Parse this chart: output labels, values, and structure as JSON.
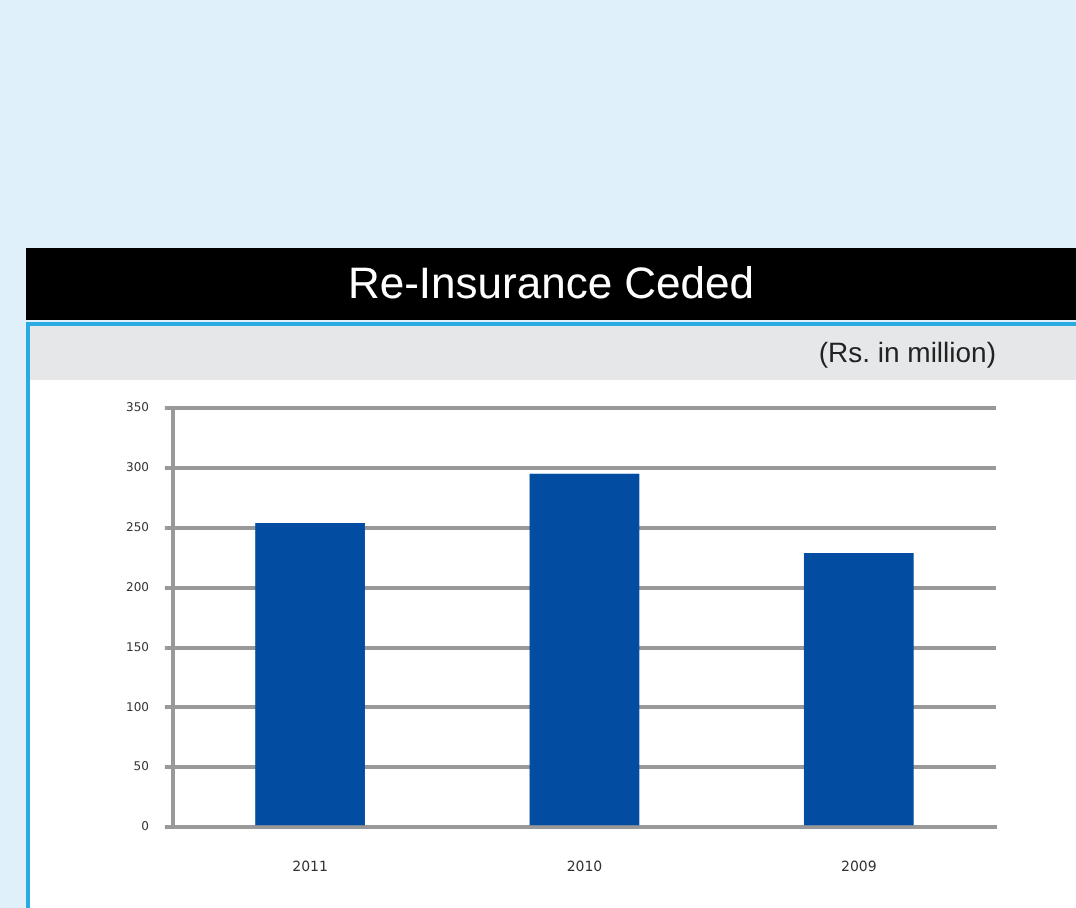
{
  "chart_data": {
    "type": "bar",
    "title": "Re-Insurance Ceded",
    "subtitle": "(Rs. in million)",
    "categories": [
      "2011",
      "2010",
      "2009"
    ],
    "values": [
      254,
      295,
      229
    ],
    "color": "#024da1",
    "ylim": [
      0,
      350
    ],
    "yticks": [
      0,
      50,
      100,
      150,
      200,
      250,
      300,
      350
    ],
    "grid": "y",
    "legend": false
  }
}
